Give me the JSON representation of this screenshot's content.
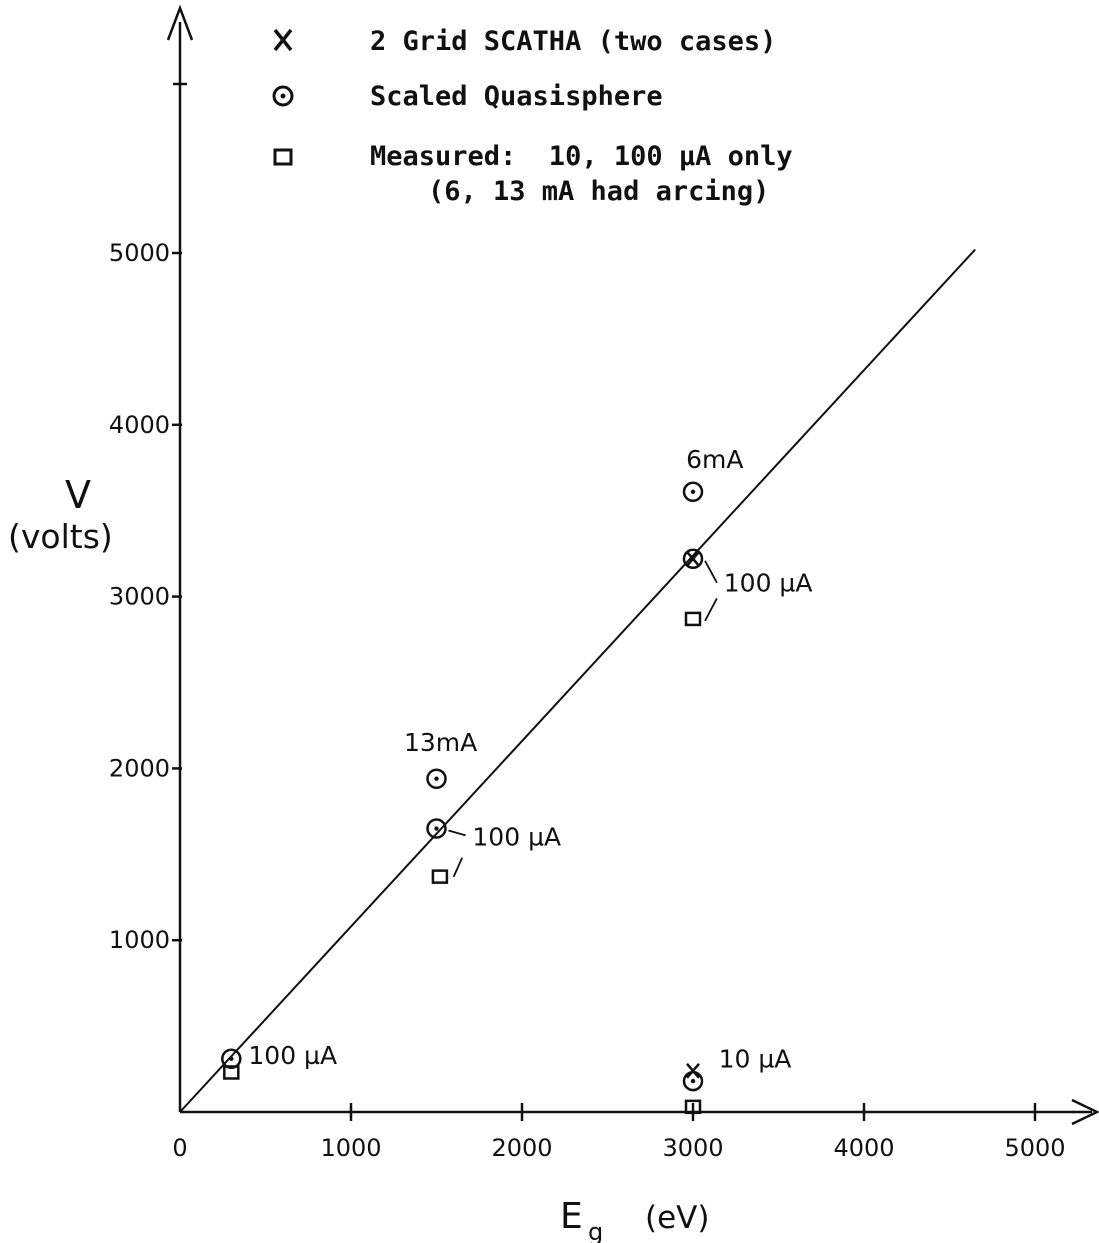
{
  "chart_data": {
    "type": "scatter",
    "xlabel": "E",
    "xlabel_sub": "g",
    "xlabel_unit": "(eV)",
    "ylabel": "V",
    "ylabel_unit": "(volts)",
    "xlim": [
      0,
      5000
    ],
    "ylim": [
      0,
      5000
    ],
    "x_ticks": [
      0,
      1000,
      2000,
      3000,
      4000,
      5000
    ],
    "x_tick_labels": [
      "0",
      "1000",
      "2000",
      "3000",
      "4000",
      "5000"
    ],
    "y_ticks": [
      1000,
      2000,
      3000,
      4000,
      5000
    ],
    "y_tick_labels": [
      "1000",
      "2000",
      "3000",
      "4000",
      "5000"
    ],
    "grid": false,
    "legend_position": "top",
    "legend": [
      {
        "marker": "x",
        "label": "2 Grid SCATHA (two cases)"
      },
      {
        "marker": "circle-dot",
        "label": "Scaled Quasisphere"
      },
      {
        "marker": "square",
        "label": "Measured:  10, 100 µA only",
        "label2": "(6, 13 mA had arcing)"
      }
    ],
    "line": {
      "x": [
        0,
        4650
      ],
      "y": [
        0,
        5020
      ]
    },
    "series": [
      {
        "marker": "x",
        "points": [
          {
            "x": 3000,
            "y": 3220
          },
          {
            "x": 3000,
            "y": 240
          }
        ]
      },
      {
        "marker": "circle-dot",
        "points": [
          {
            "x": 300,
            "y": 310
          },
          {
            "x": 1500,
            "y": 1650
          },
          {
            "x": 1500,
            "y": 1940
          },
          {
            "x": 3000,
            "y": 3220
          },
          {
            "x": 3000,
            "y": 3610
          },
          {
            "x": 3000,
            "y": 180
          }
        ]
      },
      {
        "marker": "square",
        "points": [
          {
            "x": 300,
            "y": 230
          },
          {
            "x": 1520,
            "y": 1370
          },
          {
            "x": 3000,
            "y": 2870
          },
          {
            "x": 3000,
            "y": 30
          }
        ]
      }
    ],
    "annotations": [
      {
        "text": "100 µA",
        "x": 400,
        "y": 280
      },
      {
        "text": "13mA",
        "x": 1310,
        "y": 2100
      },
      {
        "text": "100 µA",
        "x": 1710,
        "y": 1550
      },
      {
        "text": "6mA",
        "x": 2960,
        "y": 3750
      },
      {
        "text": "100 µA",
        "x": 3180,
        "y": 3030
      },
      {
        "text": "10 µA",
        "x": 3150,
        "y": 260
      }
    ]
  }
}
